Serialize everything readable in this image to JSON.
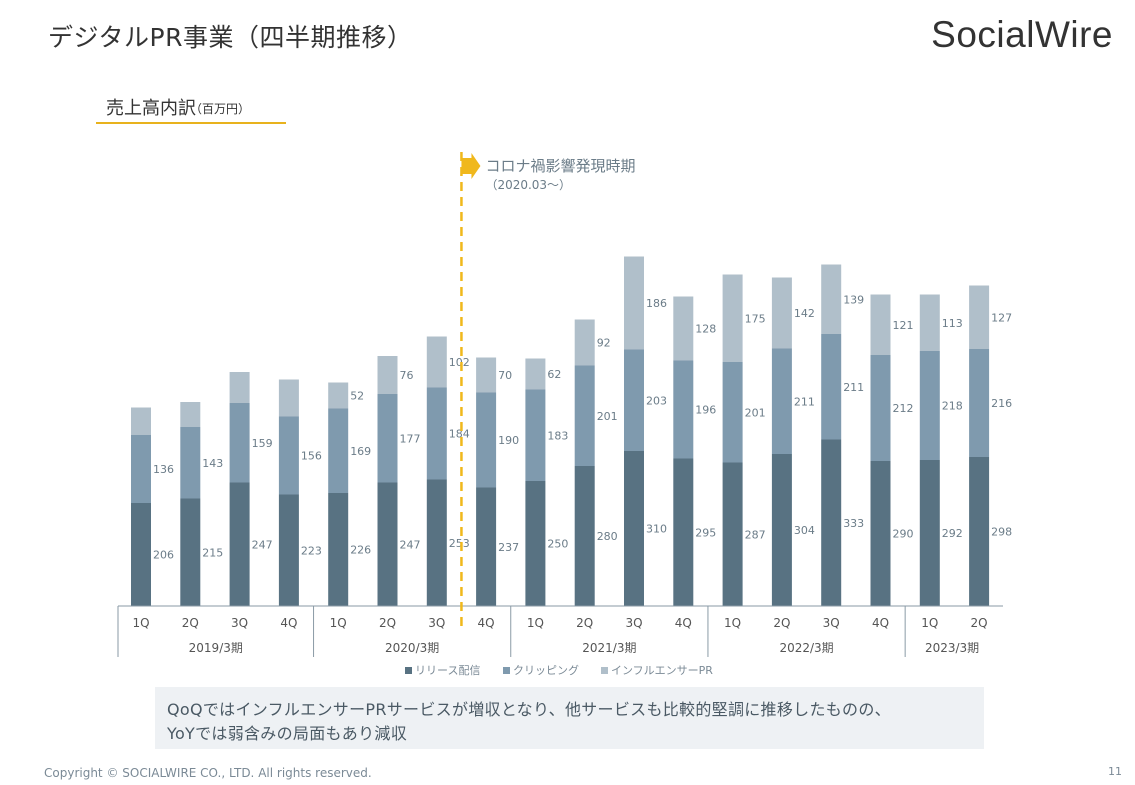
{
  "header": {
    "title": "デジタルPR事業（四半期推移）",
    "logo_text": "SocialWire"
  },
  "subtitle": {
    "main": "売上高内訳",
    "unit": "（百万円）"
  },
  "chart_data": {
    "type": "bar",
    "stacked": true,
    "categories": [
      "1Q",
      "2Q",
      "3Q",
      "4Q",
      "1Q",
      "2Q",
      "3Q",
      "4Q",
      "1Q",
      "2Q",
      "3Q",
      "4Q",
      "1Q",
      "2Q",
      "3Q",
      "4Q",
      "1Q",
      "2Q"
    ],
    "groups": [
      {
        "label": "2019/3期",
        "count": 4
      },
      {
        "label": "2020/3期",
        "count": 4
      },
      {
        "label": "2021/3期",
        "count": 4
      },
      {
        "label": "2022/3期",
        "count": 4
      },
      {
        "label": "2023/3期",
        "count": 2
      }
    ],
    "series": [
      {
        "name": "リリース配信",
        "color": "#587282",
        "values": [
          206,
          215,
          247,
          223,
          226,
          247,
          253,
          237,
          250,
          280,
          310,
          295,
          287,
          304,
          333,
          290,
          292,
          298
        ]
      },
      {
        "name": "クリッピング",
        "color": "#7f9aae",
        "values": [
          136,
          143,
          159,
          156,
          169,
          177,
          184,
          190,
          183,
          201,
          203,
          196,
          201,
          211,
          211,
          212,
          218,
          216
        ]
      },
      {
        "name": "インフルエンサーPR",
        "color": "#b0bfca",
        "values": [
          55,
          50,
          62,
          74,
          52,
          76,
          102,
          70,
          62,
          92,
          186,
          128,
          175,
          142,
          139,
          121,
          113,
          127
        ],
        "labels": [
          "",
          "",
          "",
          "",
          "52",
          "76",
          "102",
          "70",
          "62",
          "92",
          "186",
          "128",
          "175",
          "142",
          "139",
          "121",
          "113",
          "127"
        ]
      }
    ],
    "ylim": [
      0,
      700
    ],
    "legend": "bottom-center",
    "grid": false,
    "annotation": {
      "after_category_index": 7,
      "text": "コロナ禍影響発現時期",
      "subtext": "（2020.03～）",
      "color": "#f0b81c"
    }
  },
  "note": {
    "line1": "QoQではインフルエンサーPRサービスが増収となり、他サービスも比較的堅調に推移したものの、",
    "line2": "YoYでは弱含みの局面もあり減収"
  },
  "footer": {
    "copyright": "Copyright © SOCIALWIRE CO., LTD. All rights reserved.",
    "page_number": "11"
  }
}
